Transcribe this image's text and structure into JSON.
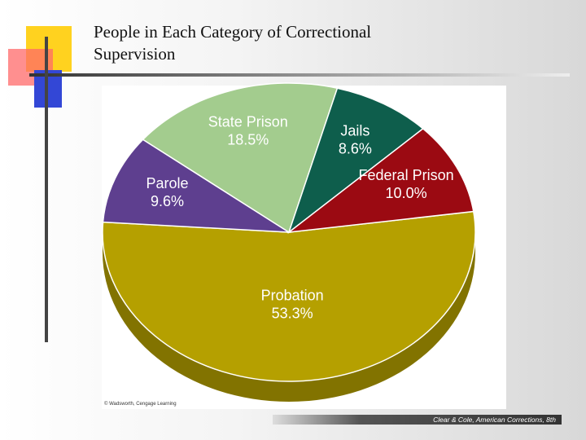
{
  "chart_data": {
    "type": "pie",
    "title": "People in Each Category of Correctional Supervision",
    "categories": [
      "Probation",
      "Parole",
      "State Prison",
      "Jails",
      "Federal Prison"
    ],
    "values": [
      53.3,
      9.6,
      18.5,
      8.6,
      10.0
    ],
    "value_labels": [
      "53.3%",
      "9.6%",
      "18.5%",
      "8.6%",
      "10.0%"
    ],
    "colors": [
      "#b5a000",
      "#5e3f8f",
      "#a3cc8e",
      "#0e5e4c",
      "#9b0a12"
    ],
    "credit": "© Wadsworth, Cengage Learning",
    "source": "Clear & Cole, American Corrections, 8th"
  }
}
